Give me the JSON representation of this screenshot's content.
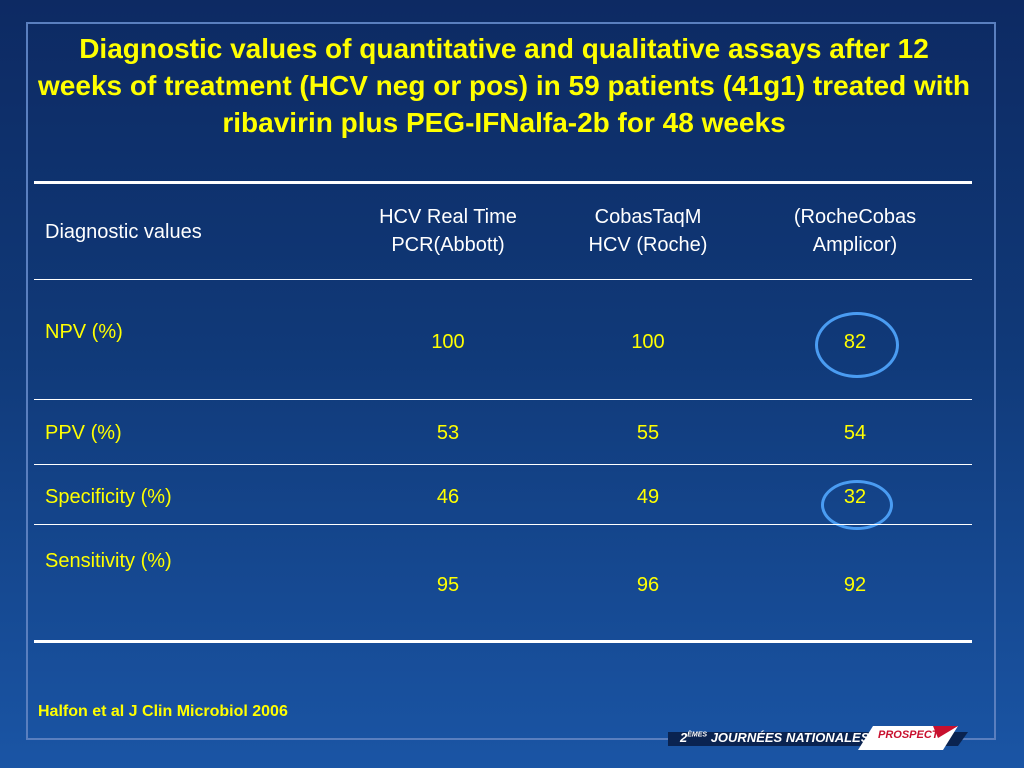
{
  "title": "Diagnostic values of quantitative and qualitative assays after 12 weeks of treatment (HCV neg or pos) in 59 patients (41g1) treated with ribavirin plus PEG-IFNalfa-2b for 48 weeks",
  "table": {
    "header": {
      "label": "Diagnostic values",
      "col1": [
        "HCV Real Time",
        "PCR(Abbott)"
      ],
      "col2": [
        "CobasTaqM",
        "HCV (Roche)"
      ],
      "col3": [
        "(RocheCobas",
        "Amplicor)"
      ]
    },
    "rows": [
      {
        "label": "NPV (%)",
        "values": [
          "100",
          "100",
          "82"
        ]
      },
      {
        "label": "PPV (%)",
        "values": [
          "53",
          "55",
          "54"
        ]
      },
      {
        "label": "Specificity (%)",
        "values": [
          "46",
          "49",
          "32"
        ]
      },
      {
        "label": "Sensitivity (%)",
        "values": [
          "95",
          "96",
          "92"
        ]
      }
    ]
  },
  "footer": {
    "citation": "Halfon et al J Clin Microbiol 2006",
    "banner_prefix": "2",
    "banner_superscript": "ÈMES",
    "banner_text": "JOURNÉES NATIONALES",
    "logo_text": "PROSPECT"
  },
  "colors": {
    "title": "#ffff00",
    "values": "#ffff00",
    "header_text": "#ffffff",
    "highlight_circle": "#4a9cf2"
  }
}
